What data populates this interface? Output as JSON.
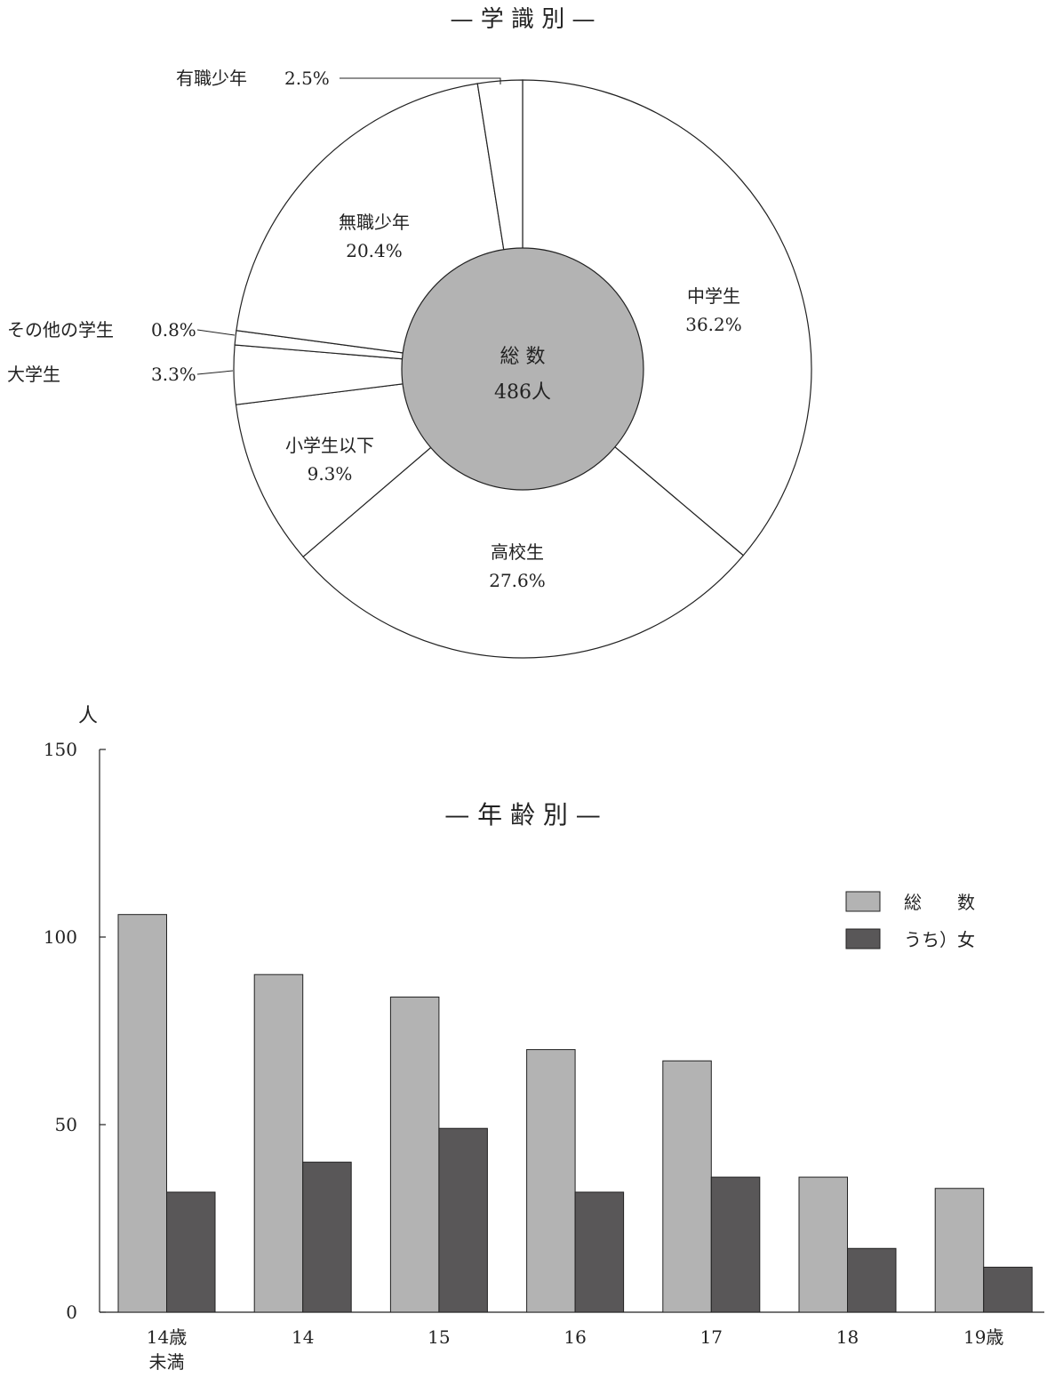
{
  "chart_data": [
    {
      "type": "pie",
      "title": "— 学 識 別 —",
      "center_label": "総 数",
      "center_value": "486人",
      "slices": [
        {
          "label": "中学生",
          "value": 36.2,
          "value_label": "36.2%"
        },
        {
          "label": "高校生",
          "value": 27.6,
          "value_label": "27.6%"
        },
        {
          "label": "小学生以下",
          "value": 9.3,
          "value_label": "9.3%"
        },
        {
          "label": "大学生",
          "value": 3.3,
          "value_label": "3.3%"
        },
        {
          "label": "その他の学生",
          "value": 0.8,
          "value_label": "0.8%"
        },
        {
          "label": "無職少年",
          "value": 20.4,
          "value_label": "20.4%"
        },
        {
          "label": "有職少年",
          "value": 2.5,
          "value_label": "2.5%"
        }
      ],
      "colors": {
        "slice_fill": "#ffffff",
        "center_fill": "#b3b3b3",
        "stroke": "#222222"
      }
    },
    {
      "type": "bar",
      "title": "— 年 齢 別 —",
      "ylabel": "人",
      "ylim": [
        0,
        150
      ],
      "yticks": [
        0,
        50,
        100,
        150
      ],
      "categories": [
        "14歳\n未満",
        "14",
        "15",
        "16",
        "17",
        "18",
        "19歳"
      ],
      "series": [
        {
          "name": "総　　数",
          "values": [
            106,
            90,
            84,
            70,
            67,
            36,
            33
          ],
          "color": "#b3b3b3"
        },
        {
          "name": "うち）女",
          "values": [
            32,
            40,
            49,
            32,
            36,
            17,
            12
          ],
          "color": "#595758"
        }
      ],
      "legend": "top-right",
      "grid": false
    }
  ]
}
